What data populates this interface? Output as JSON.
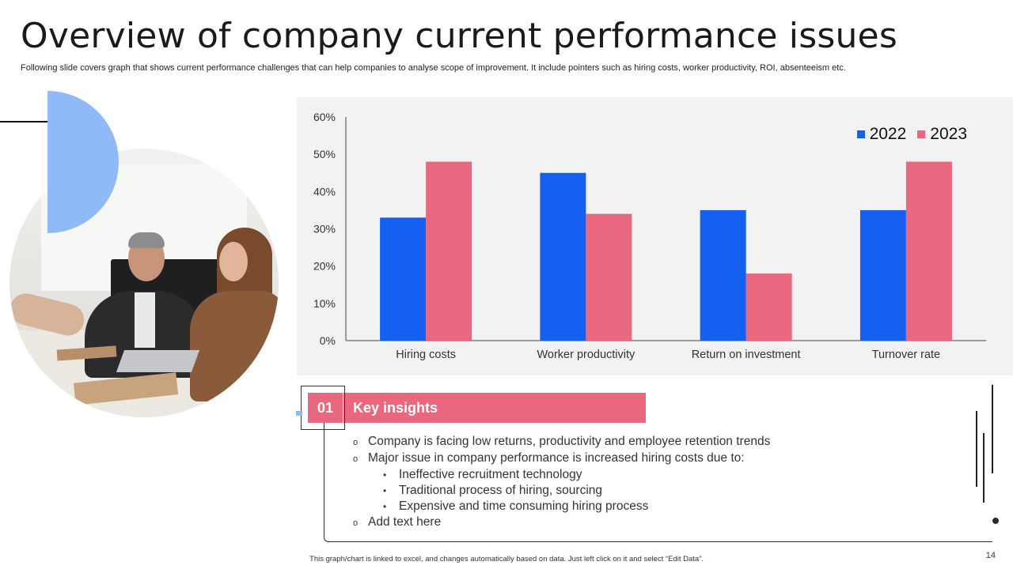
{
  "slide": {
    "title": "Overview of company current performance issues",
    "subtitle": "Following slide covers graph that shows current performance challenges that can help companies to analyse scope of improvement. It include pointers such as hiring costs, worker productivity, ROI,  absenteeism etc.",
    "page_number": "14",
    "footer_note": "This graph/chart is linked to excel, and changes automatically based on data. Just left click on it and select “Edit Data”."
  },
  "colors": {
    "series_2022": "#1560f0",
    "series_2023": "#e9677f",
    "accent_blue": "#8fbaf7",
    "chart_bg": "#f2f2f2"
  },
  "chart_data": {
    "type": "bar",
    "title": "",
    "xlabel": "",
    "ylabel": "",
    "categories": [
      "Hiring costs",
      "Worker productivity",
      "Return on investment",
      "Turnover rate"
    ],
    "series": [
      {
        "name": "2022",
        "values": [
          33,
          45,
          35,
          35
        ]
      },
      {
        "name": "2023",
        "values": [
          48,
          34,
          18,
          48
        ]
      }
    ],
    "ylim": [
      0,
      60
    ],
    "yticks": [
      0,
      10,
      20,
      30,
      40,
      50,
      60
    ],
    "ytick_labels": [
      "0%",
      "10%",
      "20%",
      "30%",
      "40%",
      "50%",
      "60%"
    ],
    "value_unit": "%",
    "grid": false,
    "legend_position": "top-right"
  },
  "insights": {
    "number": "01",
    "heading": "Key insights",
    "items": [
      {
        "text": "Company is facing low returns,  productivity and employee retention trends",
        "sub": []
      },
      {
        "text": "Major issue in company performance is increased hiring costs due to:",
        "sub": [
          "Ineffective  recruitment technology",
          "Traditional process of hiring, sourcing",
          "Expensive and time consuming hiring process"
        ]
      },
      {
        "text": "Add text here",
        "sub": []
      }
    ]
  },
  "markers": {
    "main_bullet": "o",
    "sub_bullet": "•"
  },
  "image": {
    "alt": "business meeting photo"
  }
}
